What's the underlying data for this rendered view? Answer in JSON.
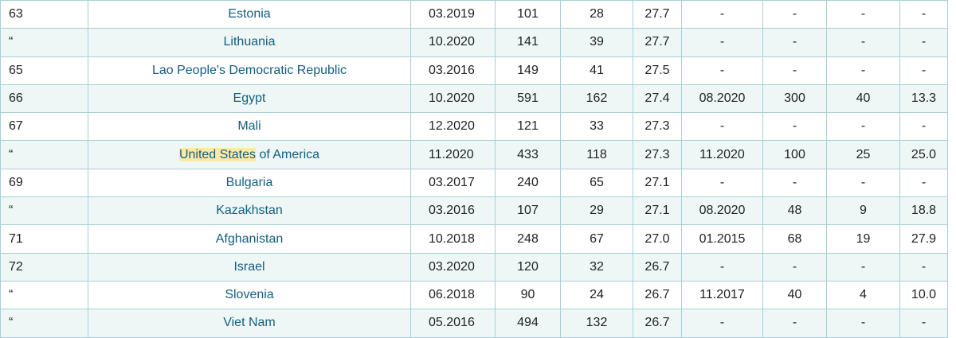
{
  "table": {
    "rows": [
      {
        "rank": "63",
        "country": "Estonia",
        "hl": "",
        "date1": "03.2019",
        "c1": "101",
        "c2": "28",
        "c3": "27.7",
        "date2": "-",
        "c4": "-",
        "c5": "-",
        "c6": "-"
      },
      {
        "rank": "“",
        "country": "Lithuania",
        "hl": "",
        "date1": "10.2020",
        "c1": "141",
        "c2": "39",
        "c3": "27.7",
        "date2": "-",
        "c4": "-",
        "c5": "-",
        "c6": "-"
      },
      {
        "rank": "65",
        "country": "Lao People's Democratic Republic",
        "hl": "",
        "date1": "03.2016",
        "c1": "149",
        "c2": "41",
        "c3": "27.5",
        "date2": "-",
        "c4": "-",
        "c5": "-",
        "c6": "-"
      },
      {
        "rank": "66",
        "country": "Egypt",
        "hl": "",
        "date1": "10.2020",
        "c1": "591",
        "c2": "162",
        "c3": "27.4",
        "date2": "08.2020",
        "c4": "300",
        "c5": "40",
        "c6": "13.3"
      },
      {
        "rank": "67",
        "country": "Mali",
        "hl": "",
        "date1": "12.2020",
        "c1": "121",
        "c2": "33",
        "c3": "27.3",
        "date2": "-",
        "c4": "-",
        "c5": "-",
        "c6": "-"
      },
      {
        "rank": "“",
        "country": " of America",
        "hl": "United States",
        "date1": "11.2020",
        "c1": "433",
        "c2": "118",
        "c3": "27.3",
        "date2": "11.2020",
        "c4": "100",
        "c5": "25",
        "c6": "25.0"
      },
      {
        "rank": "69",
        "country": "Bulgaria",
        "hl": "",
        "date1": "03.2017",
        "c1": "240",
        "c2": "65",
        "c3": "27.1",
        "date2": "-",
        "c4": "-",
        "c5": "-",
        "c6": "-"
      },
      {
        "rank": "“",
        "country": "Kazakhstan",
        "hl": "",
        "date1": "03.2016",
        "c1": "107",
        "c2": "29",
        "c3": "27.1",
        "date2": "08.2020",
        "c4": "48",
        "c5": "9",
        "c6": "18.8"
      },
      {
        "rank": "71",
        "country": "Afghanistan",
        "hl": "",
        "date1": "10.2018",
        "c1": "248",
        "c2": "67",
        "c3": "27.0",
        "date2": "01.2015",
        "c4": "68",
        "c5": "19",
        "c6": "27.9"
      },
      {
        "rank": "72",
        "country": "Israel",
        "hl": "",
        "date1": "03.2020",
        "c1": "120",
        "c2": "32",
        "c3": "26.7",
        "date2": "-",
        "c4": "-",
        "c5": "-",
        "c6": "-"
      },
      {
        "rank": "“",
        "country": "Slovenia",
        "hl": "",
        "date1": "06.2018",
        "c1": "90",
        "c2": "24",
        "c3": "26.7",
        "date2": "11.2017",
        "c4": "40",
        "c5": "4",
        "c6": "10.0"
      },
      {
        "rank": "“",
        "country": "Viet Nam",
        "hl": "",
        "date1": "05.2016",
        "c1": "494",
        "c2": "132",
        "c3": "26.7",
        "date2": "-",
        "c4": "-",
        "c5": "-",
        "c6": "-"
      }
    ]
  }
}
